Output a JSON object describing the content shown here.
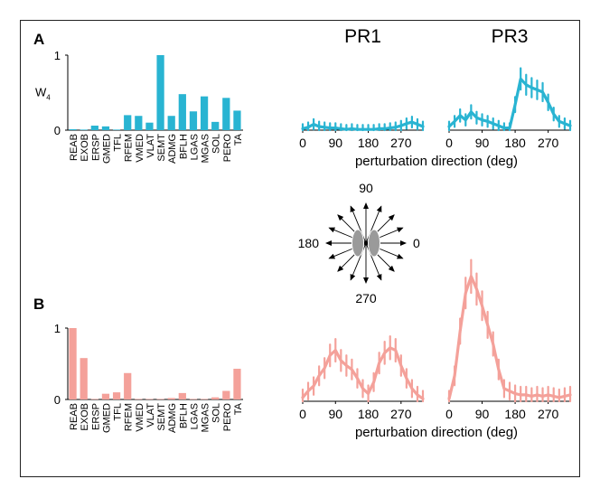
{
  "chart_data": [
    {
      "panel": "A",
      "type": "bar",
      "ylabel": "W",
      "ylabel_sub": "4",
      "ylim": [
        0,
        1
      ],
      "yticks": [
        "0",
        "1"
      ],
      "color": "#29b4d2",
      "categories": [
        "REAB",
        "EXOB",
        "ERSP",
        "GMED",
        "TFL",
        "RFEM",
        "VMED",
        "VLAT",
        "SEMT",
        "ADMG",
        "BFLH",
        "LGAS",
        "MGAS",
        "SOL",
        "PERO",
        "TA"
      ],
      "values": [
        0.01,
        0.0,
        0.06,
        0.05,
        0.0,
        0.2,
        0.19,
        0.1,
        1.0,
        0.19,
        0.48,
        0.25,
        0.45,
        0.11,
        0.43,
        0.26
      ]
    },
    {
      "panel": "A",
      "type": "line",
      "title": "PR1",
      "color": "#29b4d2",
      "xlabel": "perturbation direction (deg)",
      "xticks": [
        "0",
        "90",
        "180",
        "270"
      ],
      "xlim": [
        0,
        330
      ],
      "ylim": [
        0,
        1
      ],
      "x": [
        0,
        15,
        30,
        45,
        60,
        75,
        90,
        105,
        120,
        135,
        150,
        165,
        180,
        195,
        210,
        225,
        240,
        255,
        270,
        285,
        300,
        315,
        330
      ],
      "y": [
        0.02,
        0.04,
        0.08,
        0.05,
        0.04,
        0.03,
        0.03,
        0.02,
        0.01,
        0.02,
        0.01,
        0.01,
        0.01,
        0.01,
        0.02,
        0.02,
        0.03,
        0.04,
        0.06,
        0.09,
        0.11,
        0.08,
        0.05
      ]
    },
    {
      "panel": "A",
      "type": "line",
      "title": "PR3",
      "color": "#29b4d2",
      "xlabel": "",
      "xticks": [
        "0",
        "90",
        "180",
        "270"
      ],
      "xlim": [
        0,
        330
      ],
      "ylim": [
        0,
        1
      ],
      "x": [
        0,
        15,
        30,
        45,
        60,
        75,
        90,
        105,
        120,
        135,
        150,
        165,
        180,
        195,
        210,
        225,
        240,
        255,
        270,
        285,
        300,
        315,
        330
      ],
      "y": [
        0.05,
        0.12,
        0.2,
        0.14,
        0.25,
        0.17,
        0.14,
        0.12,
        0.09,
        0.06,
        0.03,
        0.03,
        0.35,
        0.7,
        0.62,
        0.58,
        0.55,
        0.52,
        0.38,
        0.22,
        0.12,
        0.09,
        0.06
      ]
    },
    {
      "panel": "B",
      "type": "bar",
      "ylim": [
        0,
        1
      ],
      "yticks": [
        "0",
        "1"
      ],
      "color": "#f4a19a",
      "categories": [
        "REAB",
        "EXOB",
        "ERSP",
        "GMED",
        "TFL",
        "RFEM",
        "VMED",
        "VLAT",
        "SEMT",
        "ADMG",
        "BFLH",
        "LGAS",
        "MGAS",
        "SOL",
        "PERO",
        "TA"
      ],
      "values": [
        1.0,
        0.58,
        0.0,
        0.08,
        0.1,
        0.37,
        0.0,
        0.0,
        0.0,
        0.02,
        0.09,
        0.0,
        0.0,
        0.03,
        0.12,
        0.43
      ]
    },
    {
      "panel": "B",
      "type": "line",
      "title": "",
      "color": "#f4a19a",
      "xlabel": "perturbation direction (deg)",
      "xticks": [
        "0",
        "90",
        "180",
        "270"
      ],
      "xlim": [
        0,
        330
      ],
      "ylim": [
        0,
        1
      ],
      "x": [
        0,
        15,
        30,
        45,
        60,
        75,
        90,
        105,
        120,
        135,
        150,
        165,
        180,
        195,
        210,
        225,
        240,
        255,
        270,
        285,
        300,
        315,
        330
      ],
      "y": [
        0.03,
        0.08,
        0.12,
        0.2,
        0.26,
        0.36,
        0.4,
        0.32,
        0.28,
        0.25,
        0.18,
        0.1,
        0.06,
        0.15,
        0.3,
        0.38,
        0.42,
        0.4,
        0.28,
        0.18,
        0.1,
        0.05,
        0.02
      ]
    },
    {
      "panel": "B",
      "type": "line",
      "title": "",
      "color": "#f4a19a",
      "xlabel": "",
      "xticks": [
        "0",
        "90",
        "180",
        "270"
      ],
      "xlim": [
        0,
        330
      ],
      "ylim": [
        0,
        1
      ],
      "x": [
        0,
        15,
        30,
        45,
        60,
        75,
        90,
        105,
        120,
        135,
        150,
        165,
        180,
        195,
        210,
        225,
        240,
        255,
        270,
        285,
        300,
        315,
        330
      ],
      "y": [
        0.02,
        0.2,
        0.55,
        0.85,
        0.98,
        0.88,
        0.75,
        0.6,
        0.45,
        0.25,
        0.1,
        0.08,
        0.06,
        0.05,
        0.05,
        0.04,
        0.05,
        0.04,
        0.05,
        0.04,
        0.03,
        0.04,
        0.05
      ]
    }
  ],
  "panel_labels": [
    "A",
    "B"
  ],
  "compass": {
    "labels": [
      "90",
      "180",
      "0",
      "270"
    ],
    "icon": "feet-icon"
  }
}
